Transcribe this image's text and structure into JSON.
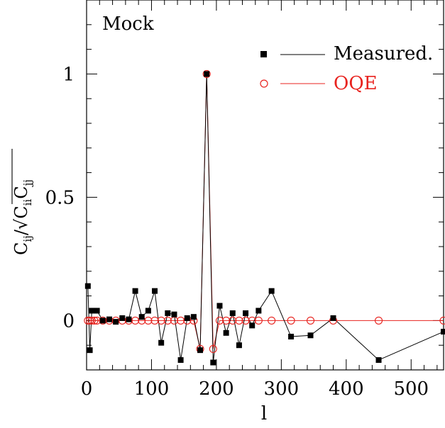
{
  "chart_data": {
    "type": "line",
    "panel_label": "Mock",
    "xlabel": "l",
    "ylabel": {
      "numerator": "C",
      "numerator_sub": "ij",
      "slash": "/",
      "radical": "√",
      "denom_a": "C",
      "denom_a_sub": "ii",
      "denom_b": "C",
      "denom_b_sub": "jj"
    },
    "xlim": [
      0,
      550
    ],
    "ylim": [
      -0.2,
      1.3
    ],
    "x_ticks": [
      0,
      100,
      200,
      300,
      400,
      500
    ],
    "x_tick_labels": [
      "0",
      "100",
      "200",
      "300",
      "400",
      "500"
    ],
    "y_ticks": [
      0,
      0.5,
      1
    ],
    "y_tick_labels": [
      "0",
      "0.5",
      "1"
    ],
    "legend": [
      {
        "label": "Measured.",
        "color": "#000000",
        "marker": "filled-square"
      },
      {
        "label": "OQE",
        "color": "#e8231f",
        "marker": "open-circle"
      }
    ],
    "series": [
      {
        "name": "Measured.",
        "color": "#000000",
        "x": [
          2,
          5,
          8,
          12,
          16,
          25,
          35,
          45,
          55,
          65,
          75,
          85,
          95,
          105,
          115,
          125,
          135,
          145,
          155,
          165,
          175,
          185,
          195,
          205,
          215,
          225,
          235,
          245,
          255,
          265,
          285,
          315,
          345,
          380,
          450,
          550
        ],
        "y": [
          0.14,
          -0.12,
          0.04,
          0.04,
          0.04,
          0.0,
          0.005,
          -0.005,
          0.01,
          0.005,
          0.12,
          0.015,
          0.04,
          0.12,
          -0.09,
          0.03,
          0.025,
          -0.16,
          0.01,
          0.015,
          -0.12,
          1.0,
          -0.17,
          0.06,
          -0.05,
          0.03,
          -0.1,
          0.03,
          -0.02,
          0.04,
          0.12,
          -0.065,
          -0.06,
          0.01,
          -0.16,
          -0.045
        ]
      },
      {
        "name": "OQE",
        "color": "#e8231f",
        "x": [
          2,
          5,
          8,
          12,
          16,
          25,
          35,
          45,
          55,
          65,
          75,
          85,
          95,
          105,
          115,
          125,
          135,
          145,
          155,
          165,
          175,
          185,
          195,
          205,
          215,
          225,
          235,
          245,
          255,
          265,
          285,
          315,
          345,
          380,
          450,
          550
        ],
        "y": [
          0,
          0,
          0,
          0,
          0,
          0,
          0,
          0,
          0,
          0,
          0,
          0,
          0,
          0,
          0,
          0,
          0,
          0,
          0,
          0,
          -0.115,
          1.0,
          -0.115,
          0,
          0,
          0,
          0,
          0,
          0,
          0,
          0,
          0,
          0,
          0,
          0,
          0
        ]
      }
    ]
  }
}
